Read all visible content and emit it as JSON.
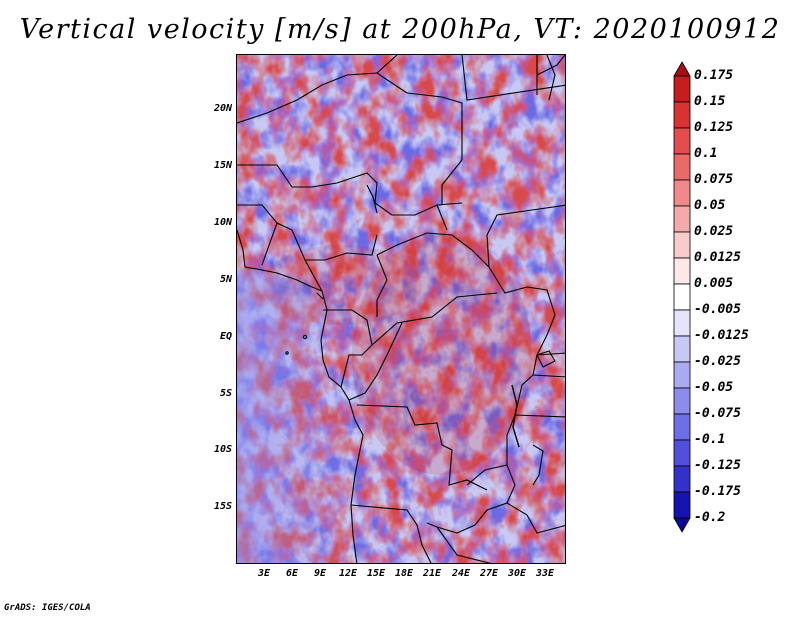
{
  "title": "Vertical velocity [m/s] at 200hPa, VT: 2020100912",
  "credit": "GrADS: IGES/COLA",
  "map": {
    "lat_labels": [
      "20N",
      "15N",
      "10N",
      "5N",
      "EQ",
      "5S",
      "10S",
      "15S"
    ],
    "lon_labels": [
      "3E",
      "6E",
      "9E",
      "12E",
      "15E",
      "18E",
      "21E",
      "24E",
      "27E",
      "30E",
      "33E"
    ]
  },
  "colorbar": {
    "levels": [
      "0.175",
      "0.15",
      "0.125",
      "0.1",
      "0.075",
      "0.05",
      "0.025",
      "0.0125",
      "0.005",
      "-0.005",
      "-0.0125",
      "-0.025",
      "-0.05",
      "-0.075",
      "-0.1",
      "-0.125",
      "-0.175",
      "-0.2"
    ],
    "colors": [
      "#a50f15",
      "#c81d1d",
      "#d93232",
      "#e34d4d",
      "#ea6a6a",
      "#f08a8a",
      "#f5aaaa",
      "#f9cccc",
      "#fde8e8",
      "#ffffff",
      "#e4e4fb",
      "#c8c8f7",
      "#aaaaf2",
      "#8c8ced",
      "#6e6ee6",
      "#5050dc",
      "#3232c8",
      "#1414b4",
      "#0a0a96"
    ]
  }
}
